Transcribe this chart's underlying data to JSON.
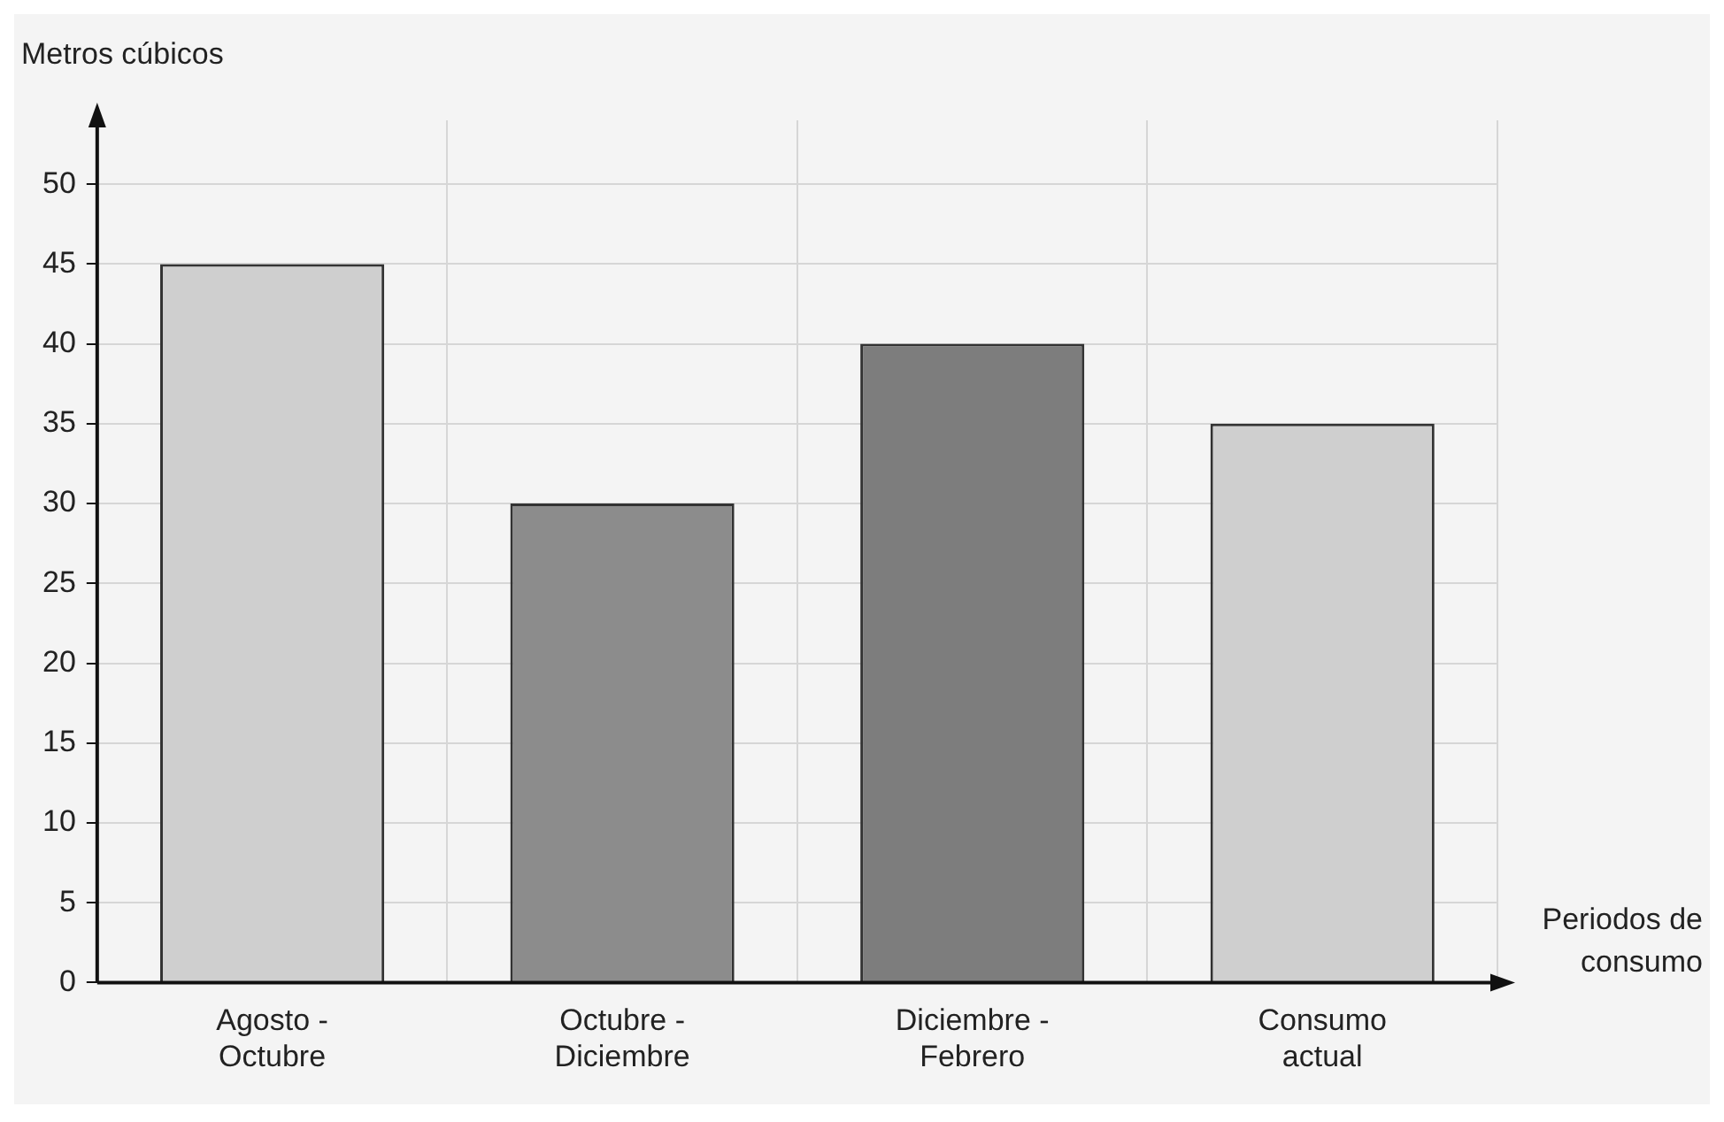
{
  "chart_data": {
    "type": "bar",
    "xlabel": "Periodos de consumo",
    "ylabel": "Metros cúbicos",
    "categories": [
      "Agosto - Octubre",
      "Octubre - Diciembre",
      "Diciembre - Febrero",
      "Consumo actual"
    ],
    "values": [
      45,
      30,
      40,
      35
    ],
    "colors": [
      "#cfcfcf",
      "#8c8c8c",
      "#7d7d7d",
      "#cfcfcf"
    ],
    "ylim": [
      0,
      54
    ],
    "yticks": [
      0,
      5,
      10,
      15,
      20,
      25,
      30,
      35,
      40,
      45,
      50
    ],
    "grid": true,
    "legend": false
  }
}
